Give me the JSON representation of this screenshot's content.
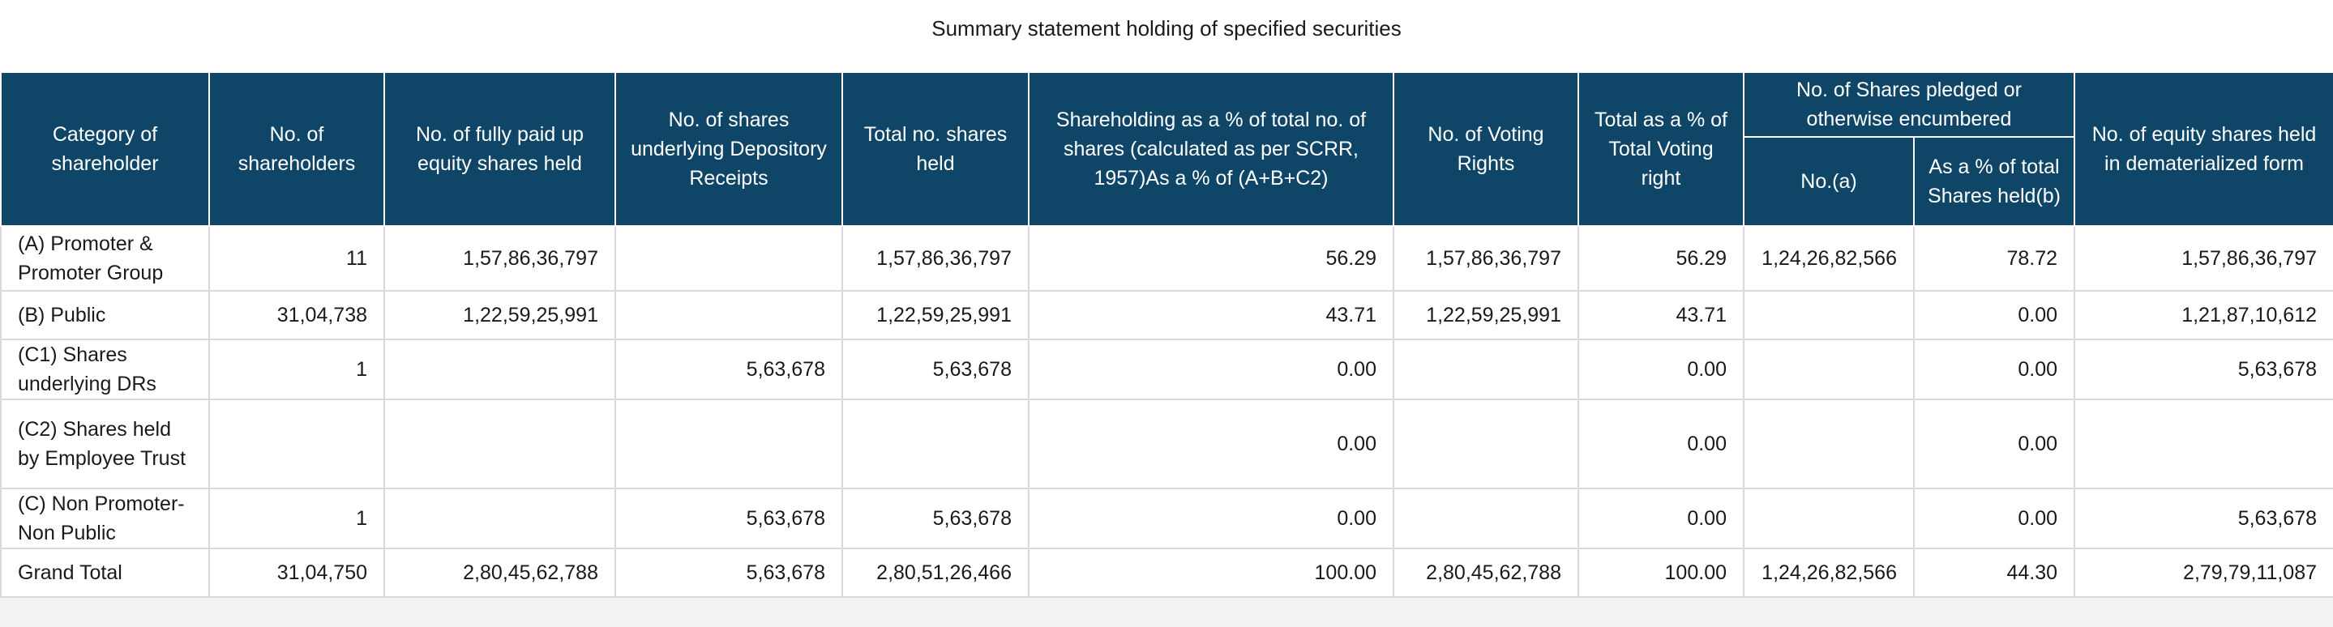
{
  "title": "Summary statement holding of specified securities",
  "header": {
    "category": "Category of shareholder",
    "num_shareholders": "No. of shareholders",
    "fully_paid": "No. of fully paid up equity shares held",
    "depository": "No. of shares underlying Depository Receipts",
    "total_shares": "Total no. shares held",
    "shareholding_pct": "Shareholding as a % of total no. of shares (calculated as per SCRR, 1957)As a % of (A+B+C2)",
    "voting_rights": "No. of Voting Rights",
    "total_voting_pct": "Total as a % of Total Voting right",
    "pledged_group": "No. of Shares pledged or otherwise encumbered",
    "pledged_no": "No.(a)",
    "pledged_pct": "As a % of total Shares held(b)",
    "demat": "No. of equity shares held in dematerialized form"
  },
  "rows": [
    {
      "category": "(A) Promoter & Promoter Group",
      "num_shareholders": "11",
      "fully_paid": "1,57,86,36,797",
      "depository": "",
      "total_shares": "1,57,86,36,797",
      "shareholding_pct": "56.29",
      "voting_rights": "1,57,86,36,797",
      "total_voting_pct": "56.29",
      "pledged_no": "1,24,26,82,566",
      "pledged_pct": "78.72",
      "demat": "1,57,86,36,797"
    },
    {
      "category": "(B) Public",
      "num_shareholders": "31,04,738",
      "fully_paid": "1,22,59,25,991",
      "depository": "",
      "total_shares": "1,22,59,25,991",
      "shareholding_pct": "43.71",
      "voting_rights": "1,22,59,25,991",
      "total_voting_pct": "43.71",
      "pledged_no": "",
      "pledged_pct": "0.00",
      "demat": "1,21,87,10,612"
    },
    {
      "category": "(C1) Shares underlying DRs",
      "num_shareholders": "1",
      "fully_paid": "",
      "depository": "5,63,678",
      "total_shares": "5,63,678",
      "shareholding_pct": "0.00",
      "voting_rights": "",
      "total_voting_pct": "0.00",
      "pledged_no": "",
      "pledged_pct": "0.00",
      "demat": "5,63,678"
    },
    {
      "category": "(C2) Shares held by Employee Trust",
      "num_shareholders": "",
      "fully_paid": "",
      "depository": "",
      "total_shares": "",
      "shareholding_pct": "0.00",
      "voting_rights": "",
      "total_voting_pct": "0.00",
      "pledged_no": "",
      "pledged_pct": "0.00",
      "demat": ""
    },
    {
      "category": "(C) Non Promoter-Non Public",
      "num_shareholders": "1",
      "fully_paid": "",
      "depository": "5,63,678",
      "total_shares": "5,63,678",
      "shareholding_pct": "0.00",
      "voting_rights": "",
      "total_voting_pct": "0.00",
      "pledged_no": "",
      "pledged_pct": "0.00",
      "demat": "5,63,678"
    },
    {
      "category": "Grand Total",
      "num_shareholders": "31,04,750",
      "fully_paid": "2,80,45,62,788",
      "depository": "5,63,678",
      "total_shares": "2,80,51,26,466",
      "shareholding_pct": "100.00",
      "voting_rights": "2,80,45,62,788",
      "total_voting_pct": "100.00",
      "pledged_no": "1,24,26,82,566",
      "pledged_pct": "44.30",
      "demat": "2,79,79,11,087"
    }
  ]
}
